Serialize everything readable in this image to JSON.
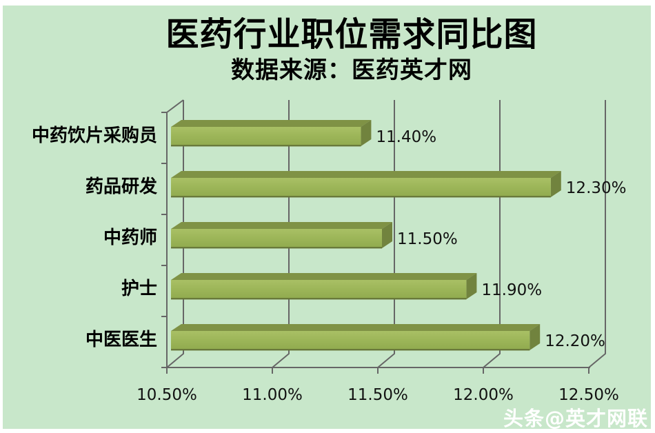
{
  "watermark": {
    "text": "头条@英才网联",
    "color": "#ffffff"
  },
  "chart_data": {
    "type": "bar",
    "orientation": "horizontal",
    "style_3d": true,
    "title": "医药行业职位需求同比图",
    "subtitle": "数据来源：医药英才网",
    "categories": [
      "中药饮片采购员",
      "药品研发",
      "中药师",
      "护士",
      "中医医生"
    ],
    "values": [
      11.4,
      12.3,
      11.5,
      11.9,
      12.2
    ],
    "value_labels": [
      "11.40%",
      "12.30%",
      "11.50%",
      "11.90%",
      "12.20%"
    ],
    "x_tick_labels": [
      "10.50%",
      "11.00%",
      "11.50%",
      "12.00%",
      "12.50%"
    ],
    "x_tick_values": [
      10.5,
      11.0,
      11.5,
      12.0,
      12.5
    ],
    "xlim": [
      10.5,
      12.5
    ],
    "xlabel": "",
    "ylabel": "",
    "grid": true,
    "legend": false,
    "colors": {
      "background": "#c8e7ca",
      "bar_front": "#9db659",
      "bar_front_light": "#a9c065",
      "bar_top": "#7f9245",
      "bar_side": "#71833e",
      "bar_edge": "#69793a",
      "axis_line": "#666666",
      "text": "#000000"
    }
  }
}
